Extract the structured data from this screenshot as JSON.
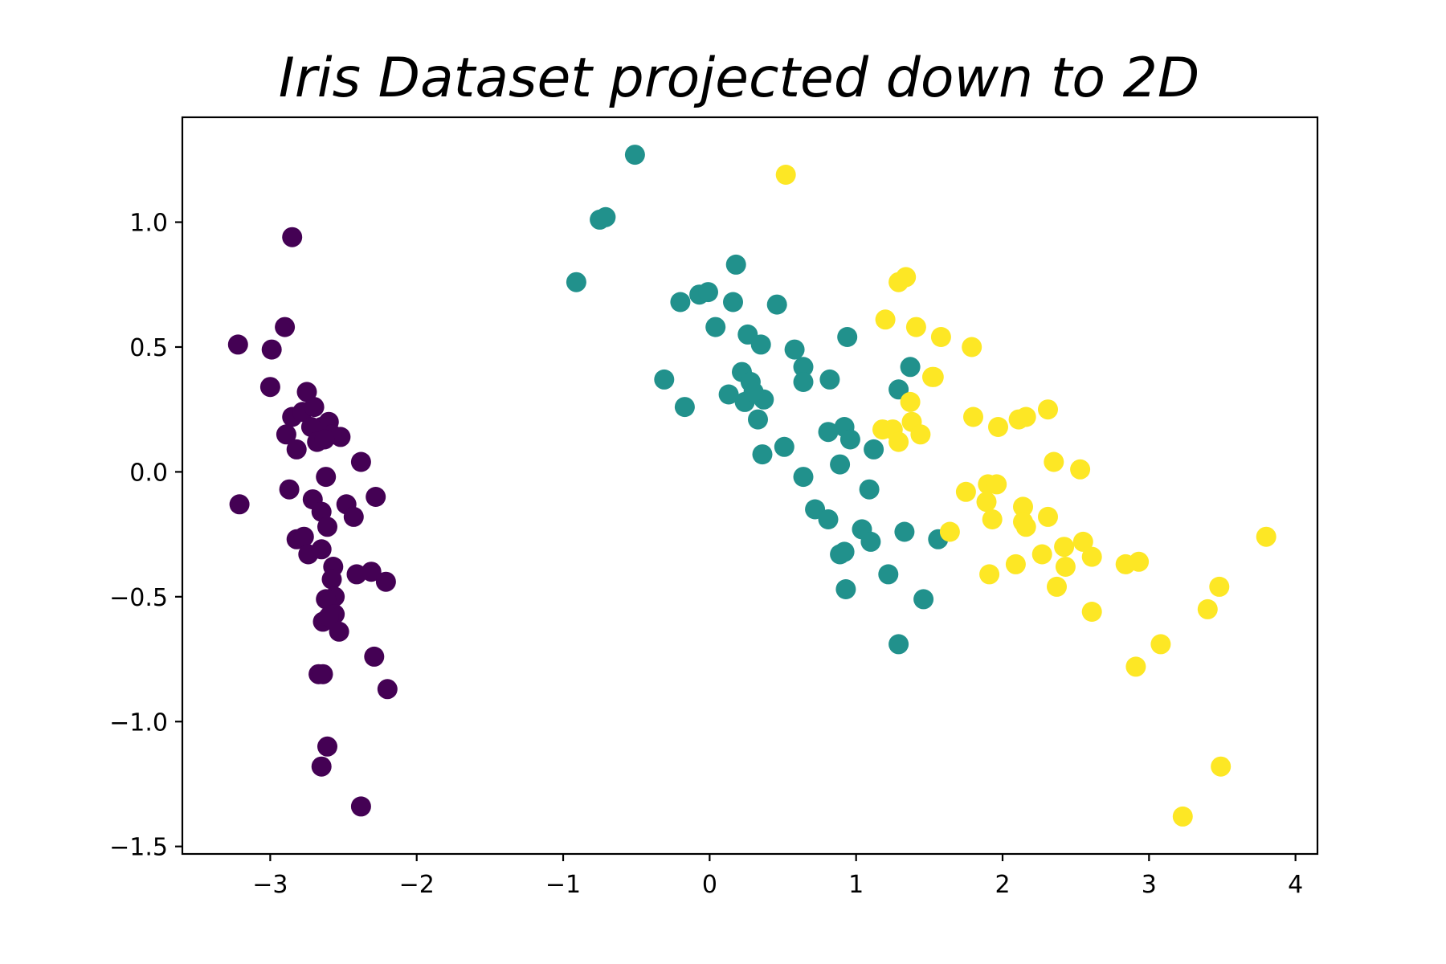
{
  "chart_data": {
    "type": "scatter",
    "title": "Iris Dataset projected down to 2D",
    "xlabel": "",
    "ylabel": "",
    "xlim": [
      -3.6,
      4.15
    ],
    "ylim": [
      -1.53,
      1.42
    ],
    "grid": false,
    "legend": "none",
    "x_ticks": [
      {
        "value": -3,
        "label": "−3"
      },
      {
        "value": -2,
        "label": "−2"
      },
      {
        "value": -1,
        "label": "−1"
      },
      {
        "value": 0,
        "label": "0"
      },
      {
        "value": 1,
        "label": "1"
      },
      {
        "value": 2,
        "label": "2"
      },
      {
        "value": 3,
        "label": "3"
      },
      {
        "value": 4,
        "label": "4"
      }
    ],
    "y_ticks": [
      {
        "value": -1.5,
        "label": "−1.5"
      },
      {
        "value": -1.0,
        "label": "−1.0"
      },
      {
        "value": -0.5,
        "label": "−0.5"
      },
      {
        "value": 0.0,
        "label": "0.0"
      },
      {
        "value": 0.5,
        "label": "0.5"
      },
      {
        "value": 1.0,
        "label": "1.0"
      }
    ],
    "series": [
      {
        "color": "#440154",
        "points": [
          [
            -2.85,
            0.94
          ],
          [
            -3.22,
            0.51
          ],
          [
            -2.9,
            0.58
          ],
          [
            -2.99,
            0.49
          ],
          [
            -3.0,
            0.34
          ],
          [
            -2.75,
            0.32
          ],
          [
            -2.85,
            0.22
          ],
          [
            -2.78,
            0.24
          ],
          [
            -2.7,
            0.26
          ],
          [
            -2.6,
            0.2
          ],
          [
            -2.65,
            0.18
          ],
          [
            -2.52,
            0.14
          ],
          [
            -2.89,
            0.15
          ],
          [
            -2.72,
            0.18
          ],
          [
            -2.58,
            0.15
          ],
          [
            -2.68,
            0.12
          ],
          [
            -2.63,
            0.13
          ],
          [
            -2.82,
            0.09
          ],
          [
            -2.38,
            0.04
          ],
          [
            -2.62,
            -0.02
          ],
          [
            -3.21,
            -0.13
          ],
          [
            -2.87,
            -0.07
          ],
          [
            -2.71,
            -0.11
          ],
          [
            -2.65,
            -0.16
          ],
          [
            -2.48,
            -0.13
          ],
          [
            -2.28,
            -0.1
          ],
          [
            -2.43,
            -0.18
          ],
          [
            -2.61,
            -0.22
          ],
          [
            -2.82,
            -0.27
          ],
          [
            -2.77,
            -0.26
          ],
          [
            -2.74,
            -0.33
          ],
          [
            -2.65,
            -0.31
          ],
          [
            -2.57,
            -0.38
          ],
          [
            -2.41,
            -0.41
          ],
          [
            -2.31,
            -0.4
          ],
          [
            -2.21,
            -0.44
          ],
          [
            -2.58,
            -0.43
          ],
          [
            -2.56,
            -0.5
          ],
          [
            -2.62,
            -0.51
          ],
          [
            -2.56,
            -0.57
          ],
          [
            -2.64,
            -0.6
          ],
          [
            -2.6,
            -0.58
          ],
          [
            -2.53,
            -0.64
          ],
          [
            -2.29,
            -0.74
          ],
          [
            -2.67,
            -0.81
          ],
          [
            -2.64,
            -0.81
          ],
          [
            -2.2,
            -0.87
          ],
          [
            -2.61,
            -1.1
          ],
          [
            -2.65,
            -1.18
          ],
          [
            -2.38,
            -1.34
          ]
        ]
      },
      {
        "color": "#21918c",
        "points": [
          [
            -0.51,
            1.27
          ],
          [
            -0.75,
            1.01
          ],
          [
            -0.71,
            1.02
          ],
          [
            -0.91,
            0.76
          ],
          [
            0.18,
            0.83
          ],
          [
            -0.2,
            0.68
          ],
          [
            -0.07,
            0.71
          ],
          [
            -0.01,
            0.72
          ],
          [
            0.16,
            0.68
          ],
          [
            0.46,
            0.67
          ],
          [
            0.04,
            0.58
          ],
          [
            0.26,
            0.55
          ],
          [
            0.35,
            0.51
          ],
          [
            0.94,
            0.54
          ],
          [
            0.58,
            0.49
          ],
          [
            0.64,
            0.42
          ],
          [
            1.37,
            0.42
          ],
          [
            -0.31,
            0.37
          ],
          [
            0.22,
            0.4
          ],
          [
            0.28,
            0.36
          ],
          [
            0.64,
            0.36
          ],
          [
            0.82,
            0.37
          ],
          [
            1.29,
            0.33
          ],
          [
            0.13,
            0.31
          ],
          [
            0.24,
            0.28
          ],
          [
            0.37,
            0.29
          ],
          [
            0.3,
            0.32
          ],
          [
            -0.17,
            0.26
          ],
          [
            0.33,
            0.21
          ],
          [
            0.81,
            0.16
          ],
          [
            0.92,
            0.18
          ],
          [
            0.96,
            0.13
          ],
          [
            0.51,
            0.1
          ],
          [
            0.36,
            0.07
          ],
          [
            1.12,
            0.09
          ],
          [
            0.89,
            0.03
          ],
          [
            0.64,
            -0.02
          ],
          [
            1.09,
            -0.07
          ],
          [
            0.72,
            -0.15
          ],
          [
            0.81,
            -0.19
          ],
          [
            1.04,
            -0.23
          ],
          [
            1.33,
            -0.24
          ],
          [
            1.1,
            -0.28
          ],
          [
            1.56,
            -0.27
          ],
          [
            0.89,
            -0.33
          ],
          [
            0.92,
            -0.32
          ],
          [
            1.22,
            -0.41
          ],
          [
            0.93,
            -0.47
          ],
          [
            1.46,
            -0.51
          ],
          [
            1.29,
            -0.69
          ]
        ]
      },
      {
        "color": "#fde725",
        "points": [
          [
            0.52,
            1.19
          ],
          [
            1.29,
            0.76
          ],
          [
            1.34,
            0.78
          ],
          [
            1.2,
            0.61
          ],
          [
            1.41,
            0.58
          ],
          [
            1.58,
            0.54
          ],
          [
            1.79,
            0.5
          ],
          [
            1.52,
            0.38
          ],
          [
            1.37,
            0.28
          ],
          [
            1.8,
            0.22
          ],
          [
            1.38,
            0.2
          ],
          [
            1.18,
            0.17
          ],
          [
            1.25,
            0.17
          ],
          [
            1.29,
            0.12
          ],
          [
            1.44,
            0.15
          ],
          [
            1.97,
            0.18
          ],
          [
            2.11,
            0.21
          ],
          [
            2.16,
            0.22
          ],
          [
            2.31,
            0.25
          ],
          [
            2.35,
            0.04
          ],
          [
            2.53,
            0.01
          ],
          [
            1.75,
            -0.08
          ],
          [
            1.9,
            -0.05
          ],
          [
            1.96,
            -0.05
          ],
          [
            1.89,
            -0.12
          ],
          [
            2.14,
            -0.14
          ],
          [
            1.93,
            -0.19
          ],
          [
            2.31,
            -0.18
          ],
          [
            2.16,
            -0.22
          ],
          [
            1.64,
            -0.24
          ],
          [
            2.09,
            -0.37
          ],
          [
            2.27,
            -0.33
          ],
          [
            2.42,
            -0.3
          ],
          [
            2.55,
            -0.28
          ],
          [
            2.61,
            -0.34
          ],
          [
            2.43,
            -0.38
          ],
          [
            1.91,
            -0.41
          ],
          [
            2.37,
            -0.46
          ],
          [
            2.84,
            -0.37
          ],
          [
            2.93,
            -0.36
          ],
          [
            3.48,
            -0.46
          ],
          [
            3.4,
            -0.55
          ],
          [
            2.61,
            -0.56
          ],
          [
            3.08,
            -0.69
          ],
          [
            2.91,
            -0.78
          ],
          [
            3.8,
            -0.26
          ],
          [
            3.49,
            -1.18
          ],
          [
            3.23,
            -1.38
          ],
          [
            1.53,
            0.38
          ],
          [
            2.14,
            -0.2
          ]
        ]
      }
    ]
  }
}
